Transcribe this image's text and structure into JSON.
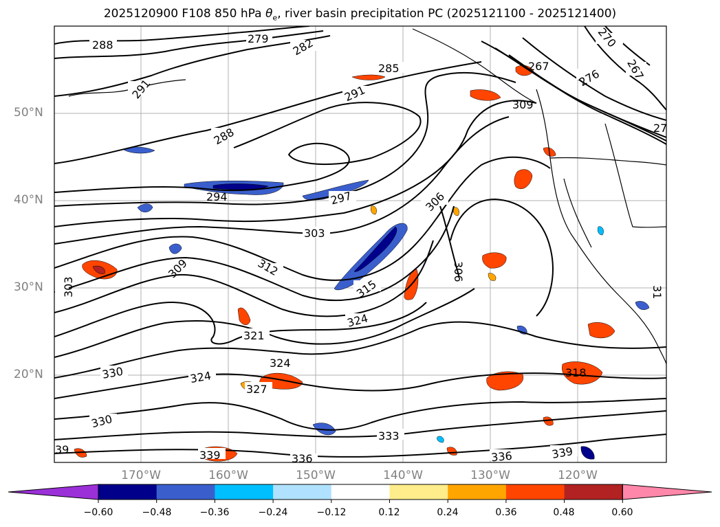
{
  "title": {
    "prefix": "2025120900 F108 850 hPa ",
    "theta": "θ",
    "theta_sub": "e",
    "suffix": ", river basin precipitation PC (2025121100 - 2025121400)"
  },
  "map": {
    "lat_labels": [
      "50°N",
      "40°N",
      "30°N",
      "20°N"
    ],
    "lon_labels": [
      "170°W",
      "160°W",
      "150°W",
      "140°W",
      "130°W",
      "120°W"
    ],
    "contour_labels": [
      "288",
      "291",
      "279",
      "282",
      "285",
      "291",
      "288",
      "294",
      "297",
      "303",
      "306",
      "306",
      "309",
      "312",
      "315",
      "303",
      "321",
      "324",
      "324",
      "330",
      "324",
      "327",
      "330",
      "333",
      "336",
      "336",
      "339",
      "339",
      "318",
      "270",
      "267",
      "276",
      "267",
      "309",
      "27",
      "31"
    ],
    "contour_color": "#000000"
  },
  "colorbar": {
    "colors": [
      "#9b30d9",
      "#00008b",
      "#3a5fcd",
      "#00bfff",
      "#b0e2ff",
      "#ffffff",
      "#ffec8b",
      "#ffa500",
      "#ff4500",
      "#b22222",
      "#ff88aa"
    ],
    "ticks": [
      "−0.60",
      "−0.48",
      "−0.36",
      "−0.24",
      "−0.12",
      "0.12",
      "0.24",
      "0.36",
      "0.48",
      "0.60"
    ]
  }
}
